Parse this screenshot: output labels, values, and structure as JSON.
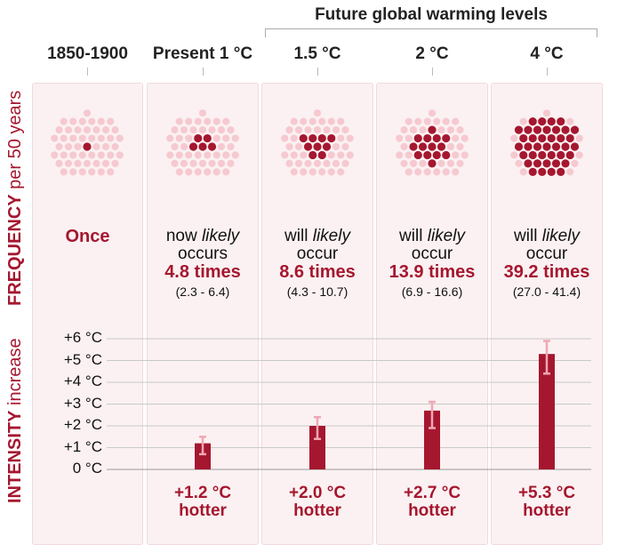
{
  "header": {
    "future_label": "Future global warming levels"
  },
  "columns": [
    {
      "heading": "1850-1900",
      "freq_line1": "",
      "freq_line2": "",
      "freq_times": "Once",
      "freq_range": "",
      "intensity_value": "",
      "intensity_word": "",
      "dots_total": 50,
      "dots_dark": 1
    },
    {
      "heading": "Present 1 °C",
      "freq_line1": "now likely",
      "freq_line2": "occurs",
      "freq_times": "4.8 times",
      "freq_range": "(2.3 - 6.4)",
      "intensity_value": "+1.2 °C",
      "intensity_word": "hotter",
      "dots_total": 50,
      "dots_dark": 5
    },
    {
      "heading": "1.5 °C",
      "freq_line1": "will likely",
      "freq_line2": "occur",
      "freq_times": "8.6 times",
      "freq_range": "(4.3 - 10.7)",
      "intensity_value": "+2.0 °C",
      "intensity_word": "hotter",
      "dots_total": 50,
      "dots_dark": 9
    },
    {
      "heading": "2 °C",
      "freq_line1": "will likely",
      "freq_line2": "occur",
      "freq_times": "13.9 times",
      "freq_range": "(6.9 - 16.6)",
      "intensity_value": "+2.7 °C",
      "intensity_word": "hotter",
      "dots_total": 50,
      "dots_dark": 14
    },
    {
      "heading": "4 °C",
      "freq_line1": "will likely",
      "freq_line2": "occur",
      "freq_times": "39.2 times",
      "freq_range": "(27.0 - 41.4)",
      "intensity_value": "+5.3 °C",
      "intensity_word": "hotter",
      "dots_total": 50,
      "dots_dark": 39
    }
  ],
  "axis_labels": {
    "frequency_bold": "FREQUENCY",
    "frequency_rest": " per 50 years",
    "intensity_bold": "INTENSITY",
    "intensity_rest": " increase"
  },
  "colors": {
    "dark": "#a5172f",
    "light": "#f6c9d0",
    "errorbar": "#f0a7b3",
    "panel": "#fbf1f2"
  },
  "chart_data": {
    "type": "bar",
    "categories": [
      "1850-1900",
      "Present 1 °C",
      "1.5 °C",
      "2 °C",
      "4 °C"
    ],
    "series": [
      {
        "values": [
          0,
          1.2,
          2.0,
          2.7,
          5.3
        ]
      }
    ],
    "error_low": [
      null,
      0.7,
      1.4,
      1.9,
      4.4
    ],
    "error_high": [
      null,
      1.5,
      2.4,
      3.1,
      5.9
    ],
    "yticks": [
      "0 °C",
      "+1 °C",
      "+2 °C",
      "+3 °C",
      "+4 °C",
      "+5 °C",
      "+6 °C"
    ],
    "ylim": [
      0,
      6
    ],
    "grid": true
  }
}
